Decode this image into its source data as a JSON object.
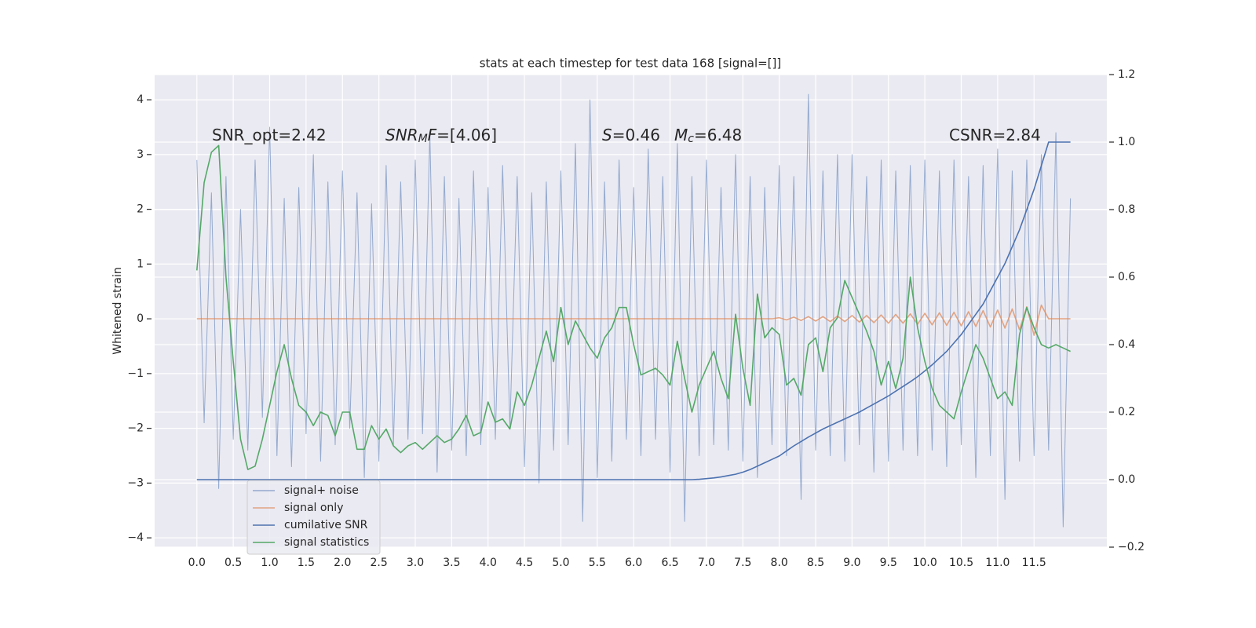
{
  "chart_data": {
    "type": "line",
    "title": "stats at each timestep for test data 168 [signal=[]]",
    "ylabel": "Whitened strain",
    "grid": true,
    "legend": "lower left",
    "xlim": [
      -0.58,
      12.5
    ],
    "ylim": [
      -4.17,
      4.46
    ],
    "y2lim": [
      -0.2,
      1.2
    ],
    "xticks": [
      {
        "value": 0,
        "label": "0.0"
      },
      0.5,
      {
        "value": 1,
        "label": "1.0"
      },
      1.5,
      {
        "value": 2,
        "label": "2.0"
      },
      2.5,
      {
        "value": 3,
        "label": "3.0"
      },
      3.5,
      {
        "value": 4,
        "label": "4.0"
      },
      4.5,
      {
        "value": 5,
        "label": "5.0"
      },
      5.5,
      {
        "value": 6,
        "label": "6.0"
      },
      6.5,
      {
        "value": 7,
        "label": "7.0"
      },
      7.5,
      {
        "value": 8,
        "label": "8.0"
      },
      8.5,
      {
        "value": 9,
        "label": "9.0"
      },
      9.5,
      {
        "value": 10,
        "label": "10.0"
      },
      10.5,
      {
        "value": 11,
        "label": "11.0"
      },
      11.5
    ],
    "yticks": [
      {
        "value": -4,
        "label": "−4"
      },
      {
        "value": -3,
        "label": "−3"
      },
      {
        "value": -2,
        "label": "−2"
      },
      {
        "value": -1,
        "label": "−1"
      },
      0,
      1,
      2,
      3,
      4
    ],
    "y2ticks": [
      {
        "value": -0.2,
        "label": "−0.2"
      },
      {
        "value": 0,
        "label": "0.0"
      },
      0.2,
      0.4,
      0.6,
      0.8,
      {
        "value": 1,
        "label": "1.0"
      },
      1.2
    ],
    "annotations": [
      [
        {
          "text": "SNR_opt=2.42",
          "italic": false,
          "sub": false
        }
      ],
      [
        {
          "text": "SNR",
          "italic": true,
          "sub": false
        },
        {
          "text": "M",
          "italic": true,
          "sub": true
        },
        {
          "text": "F",
          "italic": true,
          "sub": false
        },
        {
          "text": "=[4.06]",
          "italic": false,
          "sub": false
        }
      ],
      [
        {
          "text": "S",
          "italic": true,
          "sub": false
        },
        {
          "text": "=0.46",
          "italic": false,
          "sub": false
        }
      ],
      [
        {
          "text": "M",
          "italic": true,
          "sub": false
        },
        {
          "text": "c",
          "italic": true,
          "sub": true
        },
        {
          "text": "=6.48",
          "italic": false,
          "sub": false
        }
      ],
      [
        {
          "text": "CSNR=2.84",
          "italic": false,
          "sub": false
        }
      ]
    ],
    "x": [
      0.0,
      0.1,
      0.2,
      0.3,
      0.4,
      0.5,
      0.6,
      0.7,
      0.8,
      0.9,
      1.0,
      1.1,
      1.2,
      1.3,
      1.4,
      1.5,
      1.6,
      1.7,
      1.8,
      1.9,
      2.0,
      2.1,
      2.2,
      2.3,
      2.4,
      2.5,
      2.6,
      2.7,
      2.8,
      2.9,
      3.0,
      3.1,
      3.2,
      3.3,
      3.4,
      3.5,
      3.6,
      3.7,
      3.8,
      3.9,
      4.0,
      4.1,
      4.2,
      4.3,
      4.4,
      4.5,
      4.6,
      4.7,
      4.8,
      4.9,
      5.0,
      5.1,
      5.2,
      5.3,
      5.4,
      5.5,
      5.6,
      5.7,
      5.8,
      5.9,
      6.0,
      6.1,
      6.2,
      6.3,
      6.4,
      6.5,
      6.6,
      6.7,
      6.8,
      6.9,
      7.0,
      7.1,
      7.2,
      7.3,
      7.4,
      7.5,
      7.6,
      7.7,
      7.8,
      7.9,
      8.0,
      8.1,
      8.2,
      8.3,
      8.4,
      8.5,
      8.6,
      8.7,
      8.8,
      8.9,
      9.0,
      9.1,
      9.2,
      9.3,
      9.4,
      9.5,
      9.6,
      9.7,
      9.8,
      9.9,
      10.0,
      10.1,
      10.2,
      10.3,
      10.4,
      10.5,
      10.6,
      10.7,
      10.8,
      10.9,
      11.0,
      11.1,
      11.2,
      11.3,
      11.4,
      11.5,
      11.6,
      11.7,
      11.8,
      11.9,
      12.0
    ],
    "series": [
      {
        "name": "signal+ noise",
        "color": "#4c72b0",
        "opacity": 0.55,
        "axis": "y",
        "values": [
          2.9,
          -1.9,
          2.3,
          -3.1,
          2.6,
          -2.2,
          2.0,
          -2.4,
          2.9,
          -1.8,
          3.5,
          -2.5,
          2.2,
          -2.7,
          2.4,
          -2.1,
          3.0,
          -2.6,
          2.5,
          -2.3,
          2.7,
          -2.0,
          2.3,
          -2.9,
          2.1,
          -2.6,
          2.8,
          -2.3,
          2.5,
          -2.2,
          2.9,
          -2.1,
          3.4,
          -2.8,
          2.6,
          -2.4,
          2.2,
          -2.5,
          2.7,
          -2.3,
          2.4,
          -2.2,
          2.8,
          -2.0,
          2.6,
          -2.7,
          2.3,
          -3.0,
          2.5,
          -2.4,
          2.7,
          -2.3,
          3.2,
          -3.7,
          4.0,
          -2.9,
          2.5,
          -2.6,
          2.9,
          -2.2,
          2.4,
          -2.5,
          3.1,
          -2.2,
          2.6,
          -2.8,
          3.2,
          -3.7,
          2.6,
          -2.5,
          2.9,
          -2.3,
          2.4,
          -2.4,
          3.0,
          -2.6,
          2.6,
          -2.9,
          2.4,
          -2.3,
          2.8,
          -2.5,
          2.6,
          -3.3,
          4.1,
          -2.4,
          2.7,
          -2.5,
          3.0,
          -2.6,
          3.0,
          -2.3,
          2.6,
          -2.8,
          2.9,
          -2.6,
          2.7,
          -2.4,
          2.8,
          -2.5,
          2.9,
          -2.4,
          2.7,
          -2.7,
          2.9,
          -2.3,
          2.6,
          -2.9,
          2.8,
          -2.5,
          3.1,
          -3.3,
          2.7,
          -2.6,
          2.9,
          -2.5,
          3.0,
          -2.4,
          3.4,
          -3.8,
          2.2
        ]
      },
      {
        "name": "signal only",
        "color": "#dd8452",
        "opacity": 0.7,
        "axis": "y",
        "values": [
          0,
          0,
          0,
          0,
          0,
          0,
          0,
          0,
          0,
          0,
          0,
          0,
          0,
          0,
          0,
          0,
          0,
          0,
          0,
          0,
          0,
          0,
          0,
          0,
          0,
          0,
          0,
          0,
          0,
          0,
          0,
          0,
          0,
          0,
          0,
          0,
          0,
          0,
          0,
          0,
          0,
          0,
          0,
          0,
          0,
          0,
          0,
          0,
          0,
          0,
          0,
          0,
          0,
          0,
          0,
          0,
          0,
          0,
          0,
          0,
          0,
          0,
          0,
          0,
          0,
          0,
          0,
          0,
          0,
          0,
          0,
          0,
          0,
          0,
          0,
          0,
          0,
          0,
          0,
          0,
          0.02,
          -0.02,
          0.03,
          -0.03,
          0.04,
          -0.04,
          0.04,
          -0.05,
          0.05,
          -0.05,
          0.06,
          -0.06,
          0.06,
          -0.07,
          0.07,
          -0.08,
          0.08,
          -0.08,
          0.09,
          -0.1,
          0.1,
          -0.11,
          0.11,
          -0.12,
          0.12,
          -0.13,
          0.13,
          -0.14,
          0.15,
          -0.15,
          0.16,
          -0.17,
          0.18,
          -0.2,
          0.22,
          -0.3,
          0.25,
          0,
          0,
          0,
          0
        ]
      },
      {
        "name": "cumilative SNR",
        "color": "#4c72b0",
        "opacity": 1,
        "axis": "y2",
        "values": [
          0,
          0,
          0,
          0,
          0,
          0,
          0,
          0,
          0,
          0,
          0,
          0,
          0,
          0,
          0,
          0,
          0,
          0,
          0,
          0,
          0,
          0,
          0,
          0,
          0,
          0,
          0,
          0,
          0,
          0,
          0,
          0,
          0,
          0,
          0,
          0,
          0,
          0,
          0,
          0,
          0,
          0,
          0,
          0,
          0,
          0,
          0,
          0,
          0,
          0,
          0,
          0,
          0,
          0,
          0,
          0,
          0,
          0,
          0,
          0,
          0,
          0,
          0,
          0,
          0,
          0,
          0,
          0,
          0,
          0.001,
          0.003,
          0.005,
          0.008,
          0.012,
          0.016,
          0.022,
          0.03,
          0.04,
          0.05,
          0.06,
          0.07,
          0.085,
          0.1,
          0.113,
          0.126,
          0.138,
          0.15,
          0.16,
          0.17,
          0.18,
          0.19,
          0.2,
          0.212,
          0.224,
          0.236,
          0.248,
          0.262,
          0.276,
          0.29,
          0.305,
          0.322,
          0.34,
          0.36,
          0.38,
          0.405,
          0.43,
          0.46,
          0.49,
          0.52,
          0.56,
          0.6,
          0.64,
          0.69,
          0.74,
          0.8,
          0.86,
          0.93,
          1.0,
          1.0,
          1.0,
          1.0
        ]
      },
      {
        "name": "signal statistics",
        "color": "#55a868",
        "opacity": 1,
        "axis": "y2",
        "values": [
          0.62,
          0.88,
          0.97,
          0.99,
          0.6,
          0.35,
          0.12,
          0.03,
          0.04,
          0.12,
          0.22,
          0.32,
          0.4,
          0.3,
          0.22,
          0.2,
          0.16,
          0.2,
          0.19,
          0.13,
          0.2,
          0.2,
          0.09,
          0.09,
          0.16,
          0.12,
          0.15,
          0.1,
          0.08,
          0.1,
          0.11,
          0.09,
          0.11,
          0.13,
          0.11,
          0.12,
          0.15,
          0.19,
          0.13,
          0.14,
          0.23,
          0.17,
          0.18,
          0.15,
          0.26,
          0.22,
          0.28,
          0.36,
          0.44,
          0.35,
          0.51,
          0.4,
          0.47,
          0.43,
          0.39,
          0.36,
          0.42,
          0.45,
          0.51,
          0.51,
          0.4,
          0.31,
          0.32,
          0.33,
          0.31,
          0.28,
          0.41,
          0.3,
          0.2,
          0.28,
          0.33,
          0.38,
          0.3,
          0.24,
          0.49,
          0.33,
          0.22,
          0.55,
          0.42,
          0.45,
          0.43,
          0.28,
          0.3,
          0.25,
          0.4,
          0.42,
          0.32,
          0.45,
          0.48,
          0.59,
          0.54,
          0.49,
          0.44,
          0.38,
          0.28,
          0.35,
          0.27,
          0.36,
          0.6,
          0.45,
          0.35,
          0.27,
          0.22,
          0.2,
          0.18,
          0.26,
          0.33,
          0.4,
          0.36,
          0.3,
          0.24,
          0.26,
          0.22,
          0.43,
          0.51,
          0.45,
          0.4,
          0.39,
          0.4,
          0.39,
          0.38
        ]
      }
    ]
  }
}
